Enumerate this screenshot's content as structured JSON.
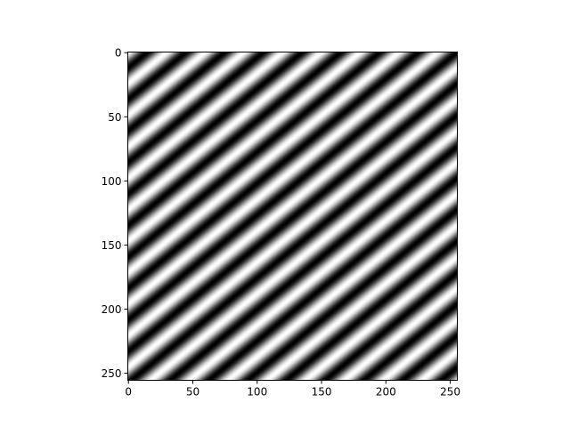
{
  "chart_data": {
    "type": "heatmap",
    "title": "",
    "xlabel": "",
    "ylabel": "",
    "colormap": "gray",
    "image_size": [
      256,
      256
    ],
    "xlim": [
      -0.5,
      255.5
    ],
    "ylim": [
      255.5,
      -0.5
    ],
    "y_inverted": true,
    "grid": false,
    "pattern": {
      "kind": "sinusoidal grating",
      "period_along_x": 30,
      "period_along_y": 24.5,
      "orientation": "diagonal stripes rising left-to-right",
      "value_range": [
        0,
        1
      ]
    },
    "xticks": [
      "0",
      "50",
      "100",
      "150",
      "200",
      "250"
    ],
    "yticks": [
      "0",
      "50",
      "100",
      "150",
      "200",
      "250"
    ],
    "xtick_values": [
      0,
      50,
      100,
      150,
      200,
      250
    ],
    "ytick_values": [
      0,
      50,
      100,
      150,
      200,
      250
    ]
  }
}
